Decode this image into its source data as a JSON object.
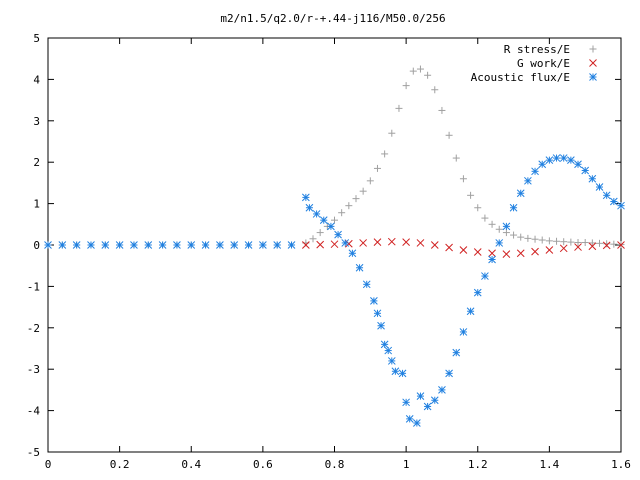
{
  "chart_data": {
    "type": "scatter",
    "title": "m2/n1.5/q2.0/r-+.44-j116/M50.0/256",
    "xlabel": "",
    "ylabel": "",
    "xlim": [
      0,
      1.6
    ],
    "ylim": [
      -5,
      5
    ],
    "x_ticks": [
      "0",
      "0.2",
      "0.4",
      "0.6",
      "0.8",
      "1",
      "1.2",
      "1.4",
      "1.6"
    ],
    "y_ticks": [
      "5",
      "4",
      "3",
      "2",
      "1",
      "0",
      "-1",
      "-2",
      "-3",
      "-4",
      "-5"
    ],
    "grid": false,
    "legend_position": "top-right",
    "series": [
      {
        "name": "R stress/E",
        "marker": "plus",
        "color": "#a0a0a0",
        "points": [
          [
            0.0,
            0
          ],
          [
            0.04,
            0
          ],
          [
            0.08,
            0
          ],
          [
            0.12,
            0
          ],
          [
            0.16,
            0
          ],
          [
            0.2,
            0
          ],
          [
            0.24,
            0
          ],
          [
            0.28,
            0
          ],
          [
            0.32,
            0
          ],
          [
            0.36,
            0
          ],
          [
            0.4,
            0
          ],
          [
            0.44,
            0
          ],
          [
            0.48,
            0
          ],
          [
            0.52,
            0
          ],
          [
            0.56,
            0
          ],
          [
            0.6,
            0
          ],
          [
            0.64,
            0
          ],
          [
            0.68,
            0
          ],
          [
            0.72,
            0.05
          ],
          [
            0.74,
            0.15
          ],
          [
            0.76,
            0.3
          ],
          [
            0.78,
            0.45
          ],
          [
            0.8,
            0.6
          ],
          [
            0.82,
            0.78
          ],
          [
            0.84,
            0.95
          ],
          [
            0.86,
            1.12
          ],
          [
            0.88,
            1.3
          ],
          [
            0.9,
            1.55
          ],
          [
            0.92,
            1.85
          ],
          [
            0.94,
            2.2
          ],
          [
            0.96,
            2.7
          ],
          [
            0.98,
            3.3
          ],
          [
            1.0,
            3.85
          ],
          [
            1.02,
            4.2
          ],
          [
            1.04,
            4.25
          ],
          [
            1.06,
            4.1
          ],
          [
            1.08,
            3.75
          ],
          [
            1.1,
            3.25
          ],
          [
            1.12,
            2.65
          ],
          [
            1.14,
            2.1
          ],
          [
            1.16,
            1.6
          ],
          [
            1.18,
            1.2
          ],
          [
            1.2,
            0.9
          ],
          [
            1.22,
            0.65
          ],
          [
            1.24,
            0.5
          ],
          [
            1.26,
            0.38
          ],
          [
            1.28,
            0.3
          ],
          [
            1.3,
            0.24
          ],
          [
            1.32,
            0.19
          ],
          [
            1.34,
            0.16
          ],
          [
            1.36,
            0.14
          ],
          [
            1.38,
            0.12
          ],
          [
            1.4,
            0.1
          ],
          [
            1.42,
            0.09
          ],
          [
            1.44,
            0.08
          ],
          [
            1.46,
            0.07
          ],
          [
            1.48,
            0.06
          ],
          [
            1.5,
            0.06
          ],
          [
            1.52,
            0.05
          ],
          [
            1.54,
            0.04
          ],
          [
            1.56,
            0.03
          ],
          [
            1.58,
            0.02
          ],
          [
            1.6,
            0.01
          ]
        ]
      },
      {
        "name": "G work/E",
        "marker": "cross",
        "color": "#d02020",
        "points": [
          [
            0.72,
            0
          ],
          [
            0.76,
            0.01
          ],
          [
            0.8,
            0.02
          ],
          [
            0.84,
            0.03
          ],
          [
            0.88,
            0.05
          ],
          [
            0.92,
            0.07
          ],
          [
            0.96,
            0.08
          ],
          [
            1.0,
            0.07
          ],
          [
            1.04,
            0.05
          ],
          [
            1.08,
            0.0
          ],
          [
            1.12,
            -0.06
          ],
          [
            1.16,
            -0.12
          ],
          [
            1.2,
            -0.17
          ],
          [
            1.24,
            -0.2
          ],
          [
            1.28,
            -0.22
          ],
          [
            1.32,
            -0.2
          ],
          [
            1.36,
            -0.16
          ],
          [
            1.4,
            -0.12
          ],
          [
            1.44,
            -0.08
          ],
          [
            1.48,
            -0.05
          ],
          [
            1.52,
            -0.03
          ],
          [
            1.56,
            -0.01
          ],
          [
            1.6,
            0.0
          ]
        ]
      },
      {
        "name": "Acoustic flux/E",
        "marker": "star",
        "color": "#2080e0",
        "points": [
          [
            0.0,
            0
          ],
          [
            0.04,
            0
          ],
          [
            0.08,
            0
          ],
          [
            0.12,
            0
          ],
          [
            0.16,
            0
          ],
          [
            0.2,
            0
          ],
          [
            0.24,
            0
          ],
          [
            0.28,
            0
          ],
          [
            0.32,
            0
          ],
          [
            0.36,
            0
          ],
          [
            0.4,
            0
          ],
          [
            0.44,
            0
          ],
          [
            0.48,
            0
          ],
          [
            0.52,
            0
          ],
          [
            0.56,
            0
          ],
          [
            0.6,
            0
          ],
          [
            0.64,
            0
          ],
          [
            0.68,
            0
          ],
          [
            0.72,
            1.15
          ],
          [
            0.73,
            0.9
          ],
          [
            0.75,
            0.75
          ],
          [
            0.77,
            0.6
          ],
          [
            0.79,
            0.45
          ],
          [
            0.81,
            0.25
          ],
          [
            0.83,
            0.05
          ],
          [
            0.85,
            -0.2
          ],
          [
            0.87,
            -0.55
          ],
          [
            0.89,
            -0.95
          ],
          [
            0.91,
            -1.35
          ],
          [
            0.92,
            -1.65
          ],
          [
            0.93,
            -1.95
          ],
          [
            0.94,
            -2.4
          ],
          [
            0.95,
            -2.55
          ],
          [
            0.96,
            -2.8
          ],
          [
            0.97,
            -3.05
          ],
          [
            0.99,
            -3.1
          ],
          [
            1.0,
            -3.8
          ],
          [
            1.01,
            -4.2
          ],
          [
            1.03,
            -4.3
          ],
          [
            1.04,
            -3.65
          ],
          [
            1.06,
            -3.9
          ],
          [
            1.08,
            -3.75
          ],
          [
            1.1,
            -3.5
          ],
          [
            1.12,
            -3.1
          ],
          [
            1.14,
            -2.6
          ],
          [
            1.16,
            -2.1
          ],
          [
            1.18,
            -1.6
          ],
          [
            1.2,
            -1.15
          ],
          [
            1.22,
            -0.75
          ],
          [
            1.24,
            -0.35
          ],
          [
            1.26,
            0.05
          ],
          [
            1.28,
            0.45
          ],
          [
            1.3,
            0.9
          ],
          [
            1.32,
            1.25
          ],
          [
            1.34,
            1.55
          ],
          [
            1.36,
            1.78
          ],
          [
            1.38,
            1.95
          ],
          [
            1.4,
            2.05
          ],
          [
            1.42,
            2.1
          ],
          [
            1.44,
            2.1
          ],
          [
            1.46,
            2.05
          ],
          [
            1.48,
            1.95
          ],
          [
            1.5,
            1.8
          ],
          [
            1.52,
            1.6
          ],
          [
            1.54,
            1.4
          ],
          [
            1.56,
            1.2
          ],
          [
            1.58,
            1.05
          ],
          [
            1.6,
            0.95
          ]
        ]
      }
    ]
  }
}
